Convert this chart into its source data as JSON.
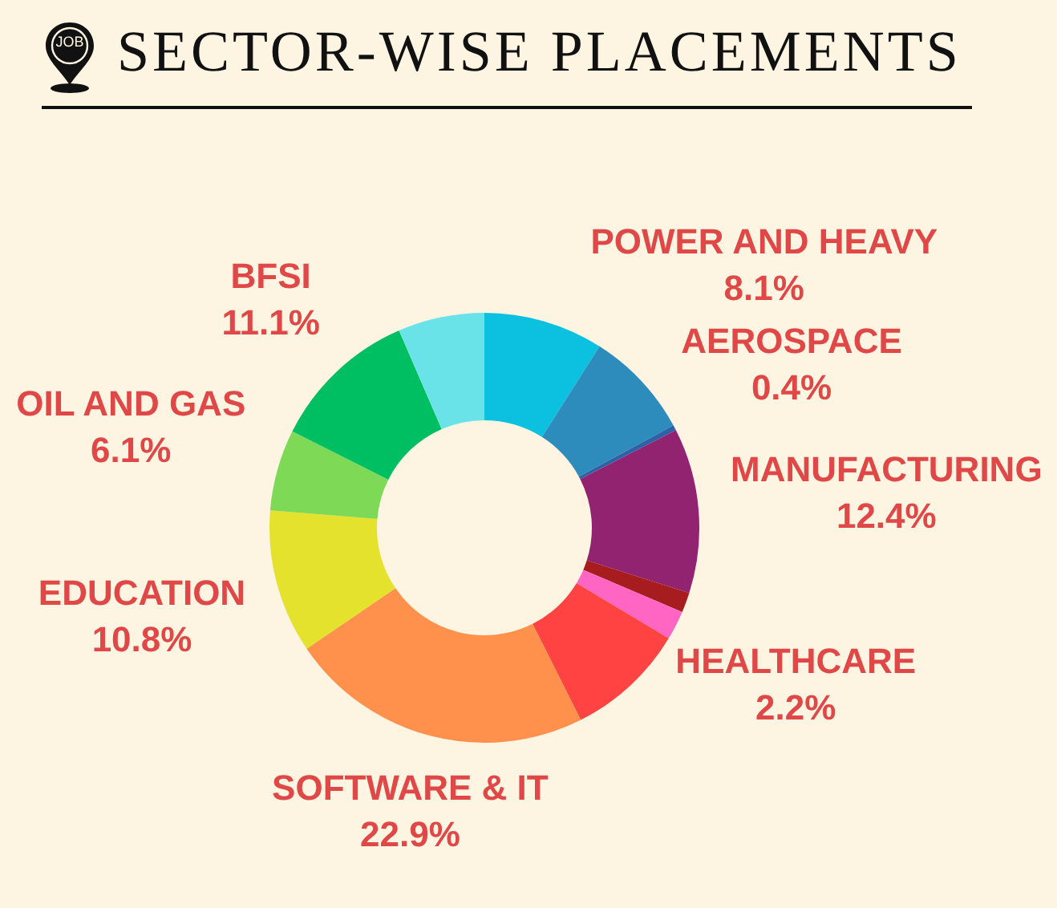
{
  "chart_data": {
    "type": "donut",
    "title": "SECTOR-WISE PLACEMENTS",
    "annotations": [
      "JOB"
    ],
    "categories": [
      null,
      "POWER AND HEAVY",
      "AEROSPACE",
      "MANUFACTURING",
      null,
      "HEALTHCARE",
      null,
      "SOFTWARE & IT",
      "EDUCATION",
      "OIL AND GAS",
      "BFSI",
      null
    ],
    "values": [
      9,
      8.1,
      0.4,
      12.4,
      1.5,
      2.2,
      9,
      22.9,
      10.8,
      6.1,
      11.1,
      6.5
    ],
    "value_labels": [
      null,
      "8.1%",
      "0.4%",
      "12.4%",
      null,
      "2.2%",
      null,
      "22.9%",
      "10.8%",
      "6.1%",
      "11.1%",
      null
    ],
    "colors": [
      "#0cc0df",
      "#2d8cbc",
      "#2d62a8",
      "#922370",
      "#a61c1f",
      "#ff66c4",
      "#ff4342",
      "#ff914d",
      "#e5e22e",
      "#7ed957",
      "#00bf63",
      "#6ae3e8"
    ]
  }
}
